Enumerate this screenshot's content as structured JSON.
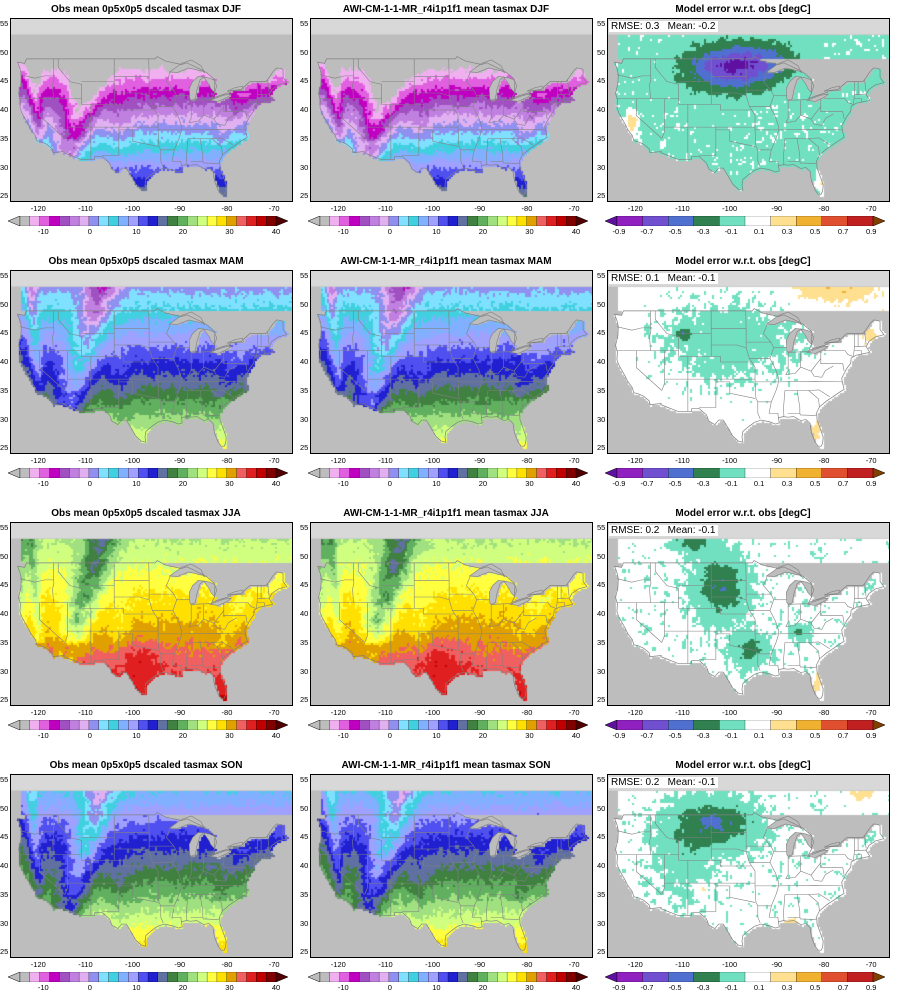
{
  "panels": [
    {
      "row": 0,
      "col": 0,
      "title": "Obs mean 0p5x0p5 dscaled tasmax DJF",
      "kind": "abs",
      "season": "DJF",
      "stats": ""
    },
    {
      "row": 0,
      "col": 1,
      "title": "AWI-CM-1-1-MR_r4i1p1f1 mean tasmax DJF",
      "kind": "abs",
      "season": "DJF",
      "stats": ""
    },
    {
      "row": 0,
      "col": 2,
      "title": "Model error w.r.t. obs [degC]",
      "kind": "err",
      "season": "DJF",
      "stats": "RMSE: 0.3   Mean: -0.2"
    },
    {
      "row": 1,
      "col": 0,
      "title": "Obs mean 0p5x0p5 dscaled tasmax MAM",
      "kind": "abs",
      "season": "MAM",
      "stats": ""
    },
    {
      "row": 1,
      "col": 1,
      "title": "AWI-CM-1-1-MR_r4i1p1f1 mean tasmax MAM",
      "kind": "abs",
      "season": "MAM",
      "stats": ""
    },
    {
      "row": 1,
      "col": 2,
      "title": "Model error w.r.t. obs [degC]",
      "kind": "err",
      "season": "MAM",
      "stats": "RMSE: 0.1   Mean: -0.1"
    },
    {
      "row": 2,
      "col": 0,
      "title": "Obs mean 0p5x0p5 dscaled tasmax JJA",
      "kind": "abs",
      "season": "JJA",
      "stats": ""
    },
    {
      "row": 2,
      "col": 1,
      "title": "AWI-CM-1-1-MR_r4i1p1f1 mean tasmax JJA",
      "kind": "abs",
      "season": "JJA",
      "stats": ""
    },
    {
      "row": 2,
      "col": 2,
      "title": "Model error w.r.t. obs [degC]",
      "kind": "err",
      "season": "JJA",
      "stats": "RMSE: 0.2   Mean: -0.1"
    },
    {
      "row": 3,
      "col": 0,
      "title": "Obs mean 0p5x0p5 dscaled tasmax SON",
      "kind": "abs",
      "season": "SON",
      "stats": ""
    },
    {
      "row": 3,
      "col": 1,
      "title": "AWI-CM-1-1-MR_r4i1p1f1 mean tasmax SON",
      "kind": "abs",
      "season": "SON",
      "stats": ""
    },
    {
      "row": 3,
      "col": 2,
      "title": "Model error w.r.t. obs [degC]",
      "kind": "err",
      "season": "SON",
      "stats": "RMSE: 0.2   Mean: -0.1"
    }
  ],
  "axes": {
    "x_ticks": [
      "-120",
      "-110",
      "-100",
      "-90",
      "-80",
      "-70"
    ],
    "x_values": [
      -120,
      -110,
      -100,
      -90,
      -80,
      -70
    ],
    "x_range": [
      -126,
      -66
    ],
    "y_ticks": [
      "55",
      "50",
      "45",
      "40",
      "35",
      "30",
      "25"
    ],
    "y_values": [
      55,
      50,
      45,
      40,
      35,
      30,
      25
    ],
    "y_range": [
      24,
      56
    ]
  },
  "colorbars": {
    "abs": {
      "labels": [
        "-10",
        "0",
        "10",
        "20",
        "30",
        "40"
      ],
      "label_values": [
        -10,
        0,
        10,
        20,
        30,
        40
      ],
      "levels": [
        -15,
        40
      ],
      "colors": [
        "#bdbdbd",
        "#f0b0f0",
        "#e060e0",
        "#c000c0",
        "#a050c0",
        "#c080e0",
        "#e0b0f0",
        "#9090f0",
        "#80e0ff",
        "#40d0e0",
        "#80b0ff",
        "#a0a0ff",
        "#5050f0",
        "#2020d0",
        "#6070a0",
        "#408040",
        "#60b060",
        "#a0e080",
        "#d0ff80",
        "#ffff40",
        "#ffe000",
        "#e0a000",
        "#f06060",
        "#e02020",
        "#c00000",
        "#800000"
      ],
      "under_color": "#bdbdbd",
      "over_color": "#500000"
    },
    "err": {
      "labels": [
        "-0.9",
        "-0.7",
        "-0.5",
        "-0.3",
        "-0.1",
        "0.1",
        "0.3",
        "0.5",
        "0.7",
        "0.9"
      ],
      "label_values": [
        -0.9,
        -0.7,
        -0.5,
        -0.3,
        -0.1,
        0.1,
        0.3,
        0.5,
        0.7,
        0.9
      ],
      "colors": [
        "#9020c0",
        "#7050d0",
        "#5070d0",
        "#308050",
        "#70e0c0",
        "#ffffff",
        "#ffe090",
        "#f0b030",
        "#e05030",
        "#c02020"
      ],
      "under_color": "#6010a0",
      "over_color": "#804000"
    }
  }
}
